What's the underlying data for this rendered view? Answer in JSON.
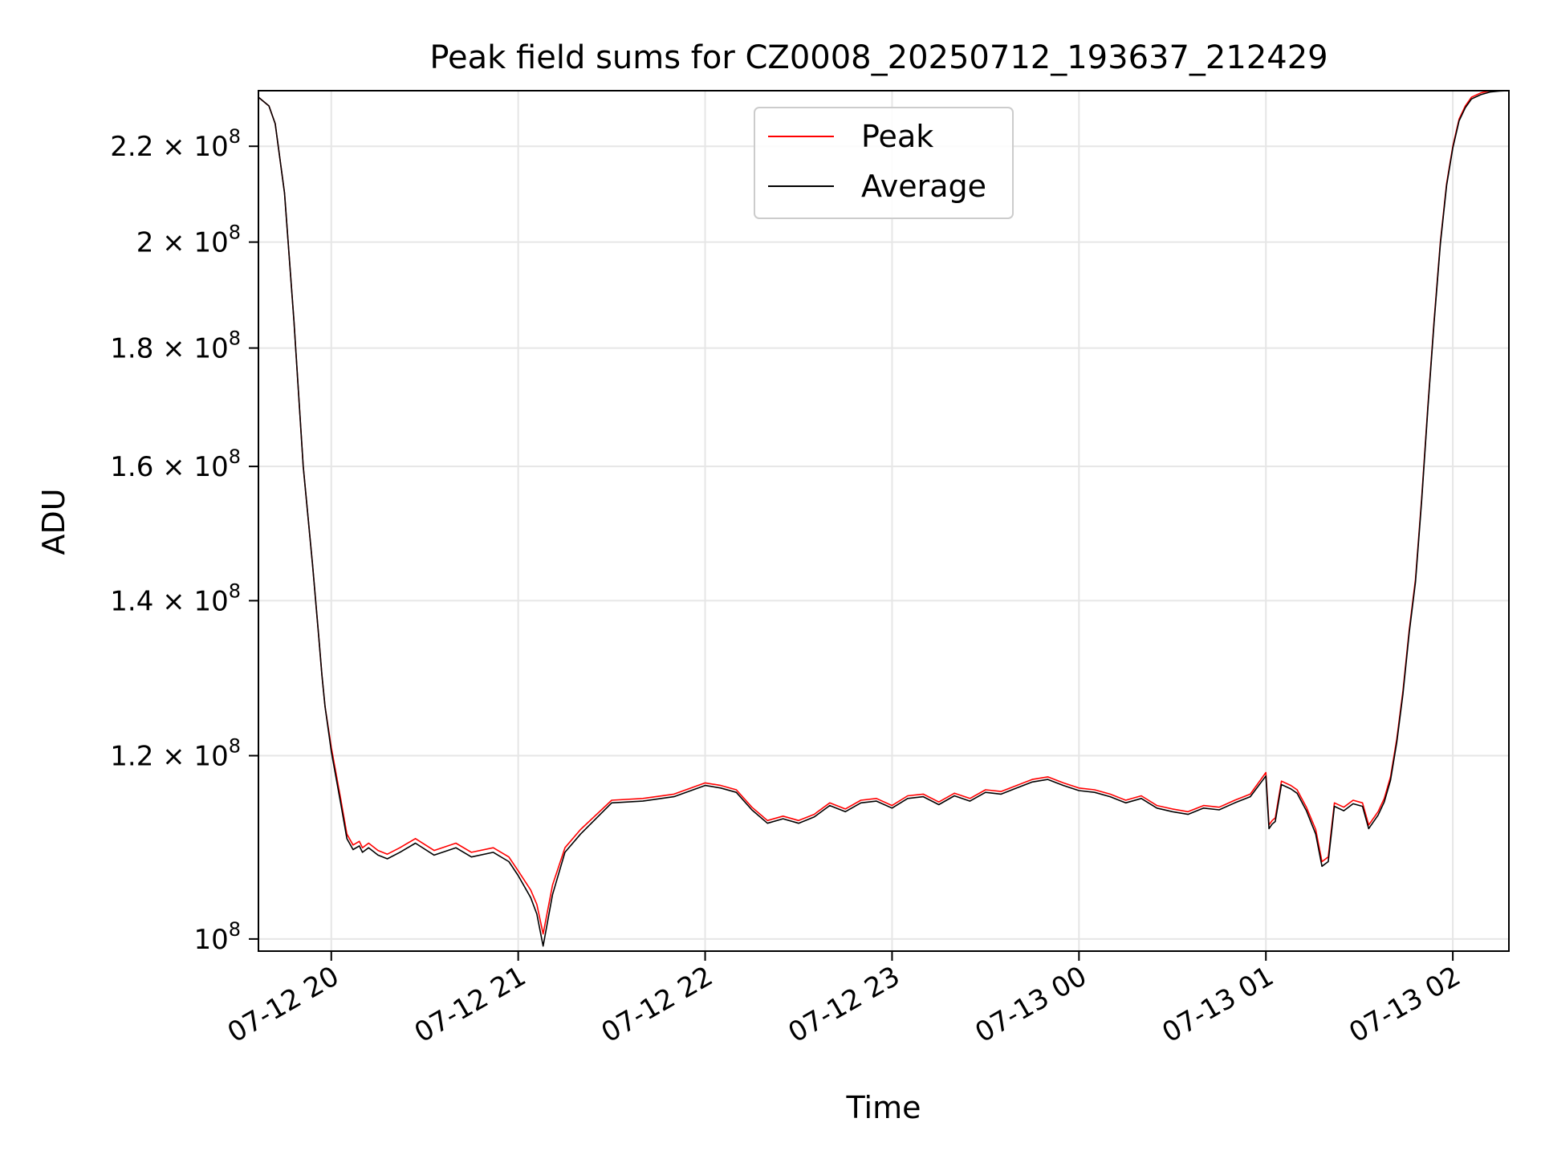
{
  "chart_data": {
    "type": "line",
    "title": "Peak field sums for CZ0008_20250712_193637_212429",
    "xlabel": "Time",
    "ylabel": "ADU",
    "yscale": "log",
    "grid": true,
    "legend_position": "top-center",
    "xlim": [
      "2025-07-12 19:36:37",
      "2025-07-13 02:18:00"
    ],
    "ylim": [
      98800000,
      232500000
    ],
    "x_ticks": [
      {
        "t": "2025-07-12 20:00",
        "label": "07-12 20"
      },
      {
        "t": "2025-07-12 21:00",
        "label": "07-12 21"
      },
      {
        "t": "2025-07-12 22:00",
        "label": "07-12 22"
      },
      {
        "t": "2025-07-12 23:00",
        "label": "07-12 23"
      },
      {
        "t": "2025-07-13 00:00",
        "label": "07-13 00"
      },
      {
        "t": "2025-07-13 01:00",
        "label": "07-13 01"
      },
      {
        "t": "2025-07-13 02:00",
        "label": "07-13 02"
      }
    ],
    "y_ticks": [
      {
        "v": 100000000,
        "mant": "",
        "exp": "8"
      },
      {
        "v": 120000000,
        "mant": "1.2",
        "exp": "8"
      },
      {
        "v": 140000000,
        "mant": "1.4",
        "exp": "8"
      },
      {
        "v": 160000000,
        "mant": "1.6",
        "exp": "8"
      },
      {
        "v": 180000000,
        "mant": "1.8",
        "exp": "8"
      },
      {
        "v": 200000000,
        "mant": "2",
        "exp": "8"
      },
      {
        "v": 220000000,
        "mant": "2.2",
        "exp": "8"
      }
    ],
    "series": [
      {
        "name": "Peak",
        "color": "#ff0000",
        "x": [
          "2025-07-12 19:36:37",
          "2025-07-12 19:40",
          "2025-07-12 19:42",
          "2025-07-12 19:45",
          "2025-07-12 19:48",
          "2025-07-12 19:51",
          "2025-07-12 19:54",
          "2025-07-12 19:56",
          "2025-07-12 19:57",
          "2025-07-12 19:58",
          "2025-07-12 20:00",
          "2025-07-12 20:03",
          "2025-07-12 20:05",
          "2025-07-12 20:07",
          "2025-07-12 20:09",
          "2025-07-12 20:10",
          "2025-07-12 20:12",
          "2025-07-12 20:15",
          "2025-07-12 20:18",
          "2025-07-12 20:22",
          "2025-07-12 20:27",
          "2025-07-12 20:33",
          "2025-07-12 20:40",
          "2025-07-12 20:45",
          "2025-07-12 20:52",
          "2025-07-12 20:57",
          "2025-07-12 21:00",
          "2025-07-12 21:04",
          "2025-07-12 21:06",
          "2025-07-12 21:08",
          "2025-07-12 21:11",
          "2025-07-12 21:15",
          "2025-07-12 21:20",
          "2025-07-12 21:30",
          "2025-07-12 21:40",
          "2025-07-12 21:50",
          "2025-07-12 22:00",
          "2025-07-12 22:05",
          "2025-07-12 22:10",
          "2025-07-12 22:15",
          "2025-07-12 22:20",
          "2025-07-12 22:25",
          "2025-07-12 22:30",
          "2025-07-12 22:35",
          "2025-07-12 22:40",
          "2025-07-12 22:45",
          "2025-07-12 22:50",
          "2025-07-12 22:55",
          "2025-07-12 23:00",
          "2025-07-12 23:05",
          "2025-07-12 23:10",
          "2025-07-12 23:15",
          "2025-07-12 23:20",
          "2025-07-12 23:25",
          "2025-07-12 23:30",
          "2025-07-12 23:35",
          "2025-07-12 23:40",
          "2025-07-12 23:45",
          "2025-07-12 23:50",
          "2025-07-12 23:55",
          "2025-07-13 00:00",
          "2025-07-13 00:05",
          "2025-07-13 00:10",
          "2025-07-13 00:15",
          "2025-07-13 00:20",
          "2025-07-13 00:25",
          "2025-07-13 00:30",
          "2025-07-13 00:35",
          "2025-07-13 00:40",
          "2025-07-13 00:45",
          "2025-07-13 00:50",
          "2025-07-13 00:55",
          "2025-07-13 01:00",
          "2025-07-13 01:01",
          "2025-07-13 01:02",
          "2025-07-13 01:03",
          "2025-07-13 01:05",
          "2025-07-13 01:08",
          "2025-07-13 01:10",
          "2025-07-13 01:13",
          "2025-07-13 01:16",
          "2025-07-13 01:18",
          "2025-07-13 01:20",
          "2025-07-13 01:22",
          "2025-07-13 01:25",
          "2025-07-13 01:28",
          "2025-07-13 01:31",
          "2025-07-13 01:33",
          "2025-07-13 01:36",
          "2025-07-13 01:38",
          "2025-07-13 01:40",
          "2025-07-13 01:42",
          "2025-07-13 01:44",
          "2025-07-13 01:46",
          "2025-07-13 01:48",
          "2025-07-13 01:50",
          "2025-07-13 01:52",
          "2025-07-13 01:54",
          "2025-07-13 01:56",
          "2025-07-13 01:58",
          "2025-07-13 02:00",
          "2025-07-13 02:02",
          "2025-07-13 02:04",
          "2025-07-13 02:06",
          "2025-07-13 02:09",
          "2025-07-13 02:12",
          "2025-07-13 02:15",
          "2025-07-13 02:18"
        ],
        "y": [
          231000000,
          229000000,
          225000000,
          210000000,
          185000000,
          160000000,
          145000000,
          135000000,
          130000000,
          126000000,
          121000000,
          115000000,
          111000000,
          109800000,
          110200000,
          109500000,
          110000000,
          109200000,
          108800000,
          109500000,
          110500000,
          109200000,
          110000000,
          109000000,
          109500000,
          108500000,
          107000000,
          105000000,
          103500000,
          100500000,
          105500000,
          109500000,
          111500000,
          114800000,
          115000000,
          115500000,
          116800000,
          116500000,
          116000000,
          114000000,
          112500000,
          113000000,
          112500000,
          113200000,
          114500000,
          113800000,
          114800000,
          115000000,
          114200000,
          115300000,
          115500000,
          114600000,
          115600000,
          115000000,
          116000000,
          115800000,
          116500000,
          117200000,
          117500000,
          116800000,
          116200000,
          116000000,
          115500000,
          114800000,
          115300000,
          114200000,
          113800000,
          113500000,
          114200000,
          114000000,
          114800000,
          115500000,
          118000000,
          112000000,
          112500000,
          112800000,
          117000000,
          116500000,
          116000000,
          114000000,
          111500000,
          108000000,
          108500000,
          114500000,
          114000000,
          114800000,
          114500000,
          112000000,
          113500000,
          115000000,
          117500000,
          122000000,
          128000000,
          136000000,
          143000000,
          155000000,
          170000000,
          185000000,
          200000000,
          212000000,
          220000000,
          226000000,
          229000000,
          231000000,
          232000000,
          232500000,
          232500000,
          232500000
        ]
      },
      {
        "name": "Average",
        "color": "#000000",
        "x": [
          "2025-07-12 19:36:37",
          "2025-07-12 19:40",
          "2025-07-12 19:42",
          "2025-07-12 19:45",
          "2025-07-12 19:48",
          "2025-07-12 19:51",
          "2025-07-12 19:54",
          "2025-07-12 19:56",
          "2025-07-12 19:57",
          "2025-07-12 19:58",
          "2025-07-12 20:00",
          "2025-07-12 20:03",
          "2025-07-12 20:05",
          "2025-07-12 20:07",
          "2025-07-12 20:09",
          "2025-07-12 20:10",
          "2025-07-12 20:12",
          "2025-07-12 20:15",
          "2025-07-12 20:18",
          "2025-07-12 20:22",
          "2025-07-12 20:27",
          "2025-07-12 20:33",
          "2025-07-12 20:40",
          "2025-07-12 20:45",
          "2025-07-12 20:52",
          "2025-07-12 20:57",
          "2025-07-12 21:00",
          "2025-07-12 21:04",
          "2025-07-12 21:06",
          "2025-07-12 21:08",
          "2025-07-12 21:11",
          "2025-07-12 21:15",
          "2025-07-12 21:20",
          "2025-07-12 21:30",
          "2025-07-12 21:40",
          "2025-07-12 21:50",
          "2025-07-12 22:00",
          "2025-07-12 22:05",
          "2025-07-12 22:10",
          "2025-07-12 22:15",
          "2025-07-12 22:20",
          "2025-07-12 22:25",
          "2025-07-12 22:30",
          "2025-07-12 22:35",
          "2025-07-12 22:40",
          "2025-07-12 22:45",
          "2025-07-12 22:50",
          "2025-07-12 22:55",
          "2025-07-12 23:00",
          "2025-07-12 23:05",
          "2025-07-12 23:10",
          "2025-07-12 23:15",
          "2025-07-12 23:20",
          "2025-07-12 23:25",
          "2025-07-12 23:30",
          "2025-07-12 23:35",
          "2025-07-12 23:40",
          "2025-07-12 23:45",
          "2025-07-12 23:50",
          "2025-07-12 23:55",
          "2025-07-13 00:00",
          "2025-07-13 00:05",
          "2025-07-13 00:10",
          "2025-07-13 00:15",
          "2025-07-13 00:20",
          "2025-07-13 00:25",
          "2025-07-13 00:30",
          "2025-07-13 00:35",
          "2025-07-13 00:40",
          "2025-07-13 00:45",
          "2025-07-13 00:50",
          "2025-07-13 00:55",
          "2025-07-13 01:00",
          "2025-07-13 01:01",
          "2025-07-13 01:02",
          "2025-07-13 01:03",
          "2025-07-13 01:05",
          "2025-07-13 01:08",
          "2025-07-13 01:10",
          "2025-07-13 01:13",
          "2025-07-13 01:16",
          "2025-07-13 01:18",
          "2025-07-13 01:20",
          "2025-07-13 01:22",
          "2025-07-13 01:25",
          "2025-07-13 01:28",
          "2025-07-13 01:31",
          "2025-07-13 01:33",
          "2025-07-13 01:36",
          "2025-07-13 01:38",
          "2025-07-13 01:40",
          "2025-07-13 01:42",
          "2025-07-13 01:44",
          "2025-07-13 01:46",
          "2025-07-13 01:48",
          "2025-07-13 01:50",
          "2025-07-13 01:52",
          "2025-07-13 01:54",
          "2025-07-13 01:56",
          "2025-07-13 01:58",
          "2025-07-13 02:00",
          "2025-07-13 02:02",
          "2025-07-13 02:04",
          "2025-07-13 02:06",
          "2025-07-13 02:09",
          "2025-07-13 02:12",
          "2025-07-13 02:15",
          "2025-07-13 02:18"
        ],
        "y": [
          231000000,
          229000000,
          225000000,
          210000000,
          185000000,
          160000000,
          145000000,
          135000000,
          130000000,
          126000000,
          120500000,
          114500000,
          110500000,
          109300000,
          109700000,
          109000000,
          109500000,
          108700000,
          108300000,
          109000000,
          110000000,
          108700000,
          109500000,
          108500000,
          109000000,
          108000000,
          106500000,
          104200000,
          102500000,
          99300000,
          104500000,
          109000000,
          111000000,
          114500000,
          114700000,
          115200000,
          116500000,
          116200000,
          115700000,
          113700000,
          112200000,
          112700000,
          112200000,
          112900000,
          114200000,
          113500000,
          114500000,
          114700000,
          113900000,
          115000000,
          115200000,
          114300000,
          115300000,
          114700000,
          115700000,
          115500000,
          116200000,
          116900000,
          117200000,
          116500000,
          115900000,
          115700000,
          115200000,
          114500000,
          115000000,
          113900000,
          113500000,
          113200000,
          113900000,
          113700000,
          114500000,
          115200000,
          117600000,
          111600000,
          112100000,
          112400000,
          116600000,
          116100000,
          115600000,
          113600000,
          111000000,
          107500000,
          108000000,
          114100000,
          113600000,
          114400000,
          114100000,
          111600000,
          113100000,
          114600000,
          117100000,
          121600000,
          127600000,
          135600000,
          142600000,
          154600000,
          169600000,
          184600000,
          199600000,
          211600000,
          219600000,
          225600000,
          228600000,
          230600000,
          231600000,
          232200000,
          232400000,
          232500000
        ]
      }
    ]
  }
}
